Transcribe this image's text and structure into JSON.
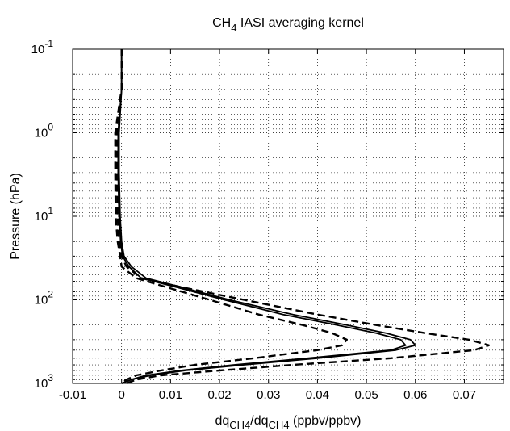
{
  "chart_data": {
    "type": "line",
    "title": {
      "main": "CH",
      "sub": "4",
      "rest": " IASI averaging kernel"
    },
    "xlabel": {
      "a": "dq",
      "a_sub": "CH4",
      "b": "/dq",
      "b_sub": "CH4",
      "c": " (ppbv/ppbv)"
    },
    "ylabel": "Pressure (hPa)",
    "xlim": [
      -0.01,
      0.078
    ],
    "x_ticks": [
      -0.01,
      0,
      0.01,
      0.02,
      0.03,
      0.04,
      0.05,
      0.06,
      0.07
    ],
    "x_tick_labels": [
      "-0.01",
      "0",
      "0.01",
      "0.02",
      "0.03",
      "0.04",
      "0.05",
      "0.06",
      "0.07"
    ],
    "yscale": "log",
    "yaxis_inverted": true,
    "ylim": [
      0.1,
      1000
    ],
    "y_ticks": [
      {
        "value": 0.1,
        "base": "10",
        "exp": "-1"
      },
      {
        "value": 1,
        "base": "10",
        "exp": "0"
      },
      {
        "value": 10,
        "base": "10",
        "exp": "1"
      },
      {
        "value": 100,
        "base": "10",
        "exp": "2"
      },
      {
        "value": 1000,
        "base": "10",
        "exp": "3"
      }
    ],
    "grid": true,
    "series": [
      {
        "style": "dashed",
        "points": [
          [
            0,
            0.1
          ],
          [
            0,
            0.3
          ],
          [
            -0.001,
            1
          ],
          [
            -0.001,
            3
          ],
          [
            -0.0008,
            10
          ],
          [
            -0.0005,
            20
          ],
          [
            0.0,
            30
          ],
          [
            0.001,
            40
          ],
          [
            0.004,
            55
          ],
          [
            0.012,
            70
          ],
          [
            0.025,
            100
          ],
          [
            0.04,
            150
          ],
          [
            0.052,
            200
          ],
          [
            0.062,
            250
          ],
          [
            0.071,
            300
          ],
          [
            0.075,
            350
          ],
          [
            0.072,
            400
          ],
          [
            0.055,
            500
          ],
          [
            0.035,
            600
          ],
          [
            0.02,
            700
          ],
          [
            0.008,
            800
          ],
          [
            0.003,
            900
          ],
          [
            0.001,
            1000
          ]
        ]
      },
      {
        "style": "solid",
        "points": [
          [
            0,
            0.1
          ],
          [
            0,
            0.3
          ],
          [
            -0.0005,
            1
          ],
          [
            -0.0005,
            3
          ],
          [
            -0.0003,
            10
          ],
          [
            0.0,
            20
          ],
          [
            0.0005,
            30
          ],
          [
            0.002,
            40
          ],
          [
            0.005,
            55
          ],
          [
            0.012,
            70
          ],
          [
            0.022,
            100
          ],
          [
            0.035,
            150
          ],
          [
            0.046,
            200
          ],
          [
            0.054,
            250
          ],
          [
            0.059,
            300
          ],
          [
            0.06,
            350
          ],
          [
            0.056,
            400
          ],
          [
            0.04,
            500
          ],
          [
            0.025,
            600
          ],
          [
            0.013,
            700
          ],
          [
            0.006,
            800
          ],
          [
            0.002,
            900
          ],
          [
            0.0,
            1000
          ]
        ]
      },
      {
        "style": "solid",
        "points": [
          [
            0,
            0.1
          ],
          [
            0,
            0.3
          ],
          [
            -0.0007,
            1
          ],
          [
            -0.0007,
            3
          ],
          [
            -0.0005,
            10
          ],
          [
            -0.0002,
            20
          ],
          [
            0.0002,
            30
          ],
          [
            0.0015,
            40
          ],
          [
            0.004,
            55
          ],
          [
            0.011,
            70
          ],
          [
            0.021,
            100
          ],
          [
            0.033,
            150
          ],
          [
            0.044,
            200
          ],
          [
            0.052,
            250
          ],
          [
            0.057,
            300
          ],
          [
            0.058,
            350
          ],
          [
            0.055,
            400
          ],
          [
            0.038,
            500
          ],
          [
            0.023,
            600
          ],
          [
            0.012,
            700
          ],
          [
            0.005,
            800
          ],
          [
            0.002,
            900
          ],
          [
            0.0,
            1000
          ]
        ]
      },
      {
        "style": "dashed",
        "points": [
          [
            0,
            0.1
          ],
          [
            0,
            0.3
          ],
          [
            -0.0013,
            1
          ],
          [
            -0.0013,
            3
          ],
          [
            -0.0012,
            10
          ],
          [
            -0.0008,
            20
          ],
          [
            -0.0003,
            30
          ],
          [
            0.0,
            40
          ],
          [
            0.003,
            55
          ],
          [
            0.009,
            70
          ],
          [
            0.018,
            100
          ],
          [
            0.028,
            150
          ],
          [
            0.037,
            200
          ],
          [
            0.043,
            250
          ],
          [
            0.046,
            300
          ],
          [
            0.045,
            350
          ],
          [
            0.04,
            400
          ],
          [
            0.027,
            500
          ],
          [
            0.015,
            600
          ],
          [
            0.008,
            700
          ],
          [
            0.003,
            800
          ],
          [
            0.001,
            900
          ],
          [
            0.0,
            1000
          ]
        ]
      }
    ]
  }
}
